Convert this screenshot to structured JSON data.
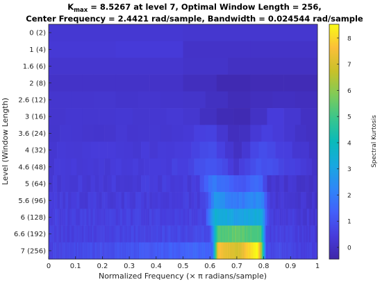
{
  "chart_data": {
    "type": "heatmap",
    "title": {
      "line1_pre": "K",
      "line1_sub": "max",
      "line1_post": " = 8.5267 at level 7, Optimal Window Length = 256,",
      "line2": "Center Frequency = 2.4421 rad/sample, Bandwidth = 0.024544 rad/sample"
    },
    "xlabel": "Normalized Frequency (× π radians/sample)",
    "ylabel": "Level (Window Length)",
    "colorbar_label": "Spectral Kurtosis",
    "xlim": [
      0,
      1
    ],
    "xticks": [
      "0",
      "0.1",
      "0.2",
      "0.3",
      "0.4",
      "0.5",
      "0.6",
      "0.7",
      "0.8",
      "0.9",
      "1"
    ],
    "levels": [
      "0  (2)",
      "1  (4)",
      "1.6  (6)",
      "2  (8)",
      "2.6 (12)",
      "3  (16)",
      "3.6 (24)",
      "4  (32)",
      "4.6 (48)",
      "5  (64)",
      "5.6 (96)",
      "6 (128)",
      "6.6 (192)",
      "7 (256)"
    ],
    "clim": [
      -0.45,
      8.5267
    ],
    "cticks": [
      "0",
      "1",
      "2",
      "3",
      "4",
      "5",
      "6",
      "7",
      "8"
    ],
    "kmax": 8.5267,
    "kmax_level": 7,
    "center_frequency_normalized": 0.7773,
    "bandwidth_normalized": 0.0078,
    "row_bands": [
      {
        "level": "0  (2)",
        "bands": 2,
        "profile": [
          {
            "x": 0,
            "v": 0.3
          },
          {
            "x": 1,
            "v": 0.2
          }
        ]
      },
      {
        "level": "1  (4)",
        "bands": 4,
        "profile": [
          {
            "x": 0,
            "v": 0.3
          },
          {
            "x": 0.5,
            "v": 0.4
          },
          {
            "x": 0.6,
            "v": 0.1
          },
          {
            "x": 1,
            "v": 0.1
          }
        ]
      },
      {
        "level": "1.6  (6)",
        "bands": 6,
        "profile": [
          {
            "x": 0,
            "v": 0.2
          },
          {
            "x": 0.5,
            "v": 0.2
          },
          {
            "x": 0.7,
            "v": 0.0
          },
          {
            "x": 1,
            "v": 0.0
          }
        ]
      },
      {
        "level": "2  (8)",
        "bands": 8,
        "profile": [
          {
            "x": 0,
            "v": 0.1
          },
          {
            "x": 0.5,
            "v": 0.1
          },
          {
            "x": 0.65,
            "v": -0.3
          },
          {
            "x": 0.8,
            "v": -0.2
          },
          {
            "x": 1,
            "v": -0.2
          }
        ]
      },
      {
        "level": "2.6 (12)",
        "bands": 12,
        "profile": [
          {
            "x": 0,
            "v": 0.2
          },
          {
            "x": 0.5,
            "v": 0.2
          },
          {
            "x": 0.7,
            "v": -0.2
          },
          {
            "x": 0.85,
            "v": 0.0
          },
          {
            "x": 1,
            "v": -0.1
          }
        ]
      },
      {
        "level": "3  (16)",
        "bands": 16,
        "profile": [
          {
            "x": 0,
            "v": 0.2
          },
          {
            "x": 0.5,
            "v": 0.3
          },
          {
            "x": 0.7,
            "v": -0.3
          },
          {
            "x": 0.85,
            "v": 0.4
          },
          {
            "x": 1,
            "v": -0.1
          }
        ]
      },
      {
        "level": "3.6 (24)",
        "bands": 24,
        "profile": [
          {
            "x": 0,
            "v": 0.2
          },
          {
            "x": 0.5,
            "v": 0.3
          },
          {
            "x": 0.6,
            "v": 0.6
          },
          {
            "x": 0.7,
            "v": -0.2
          },
          {
            "x": 0.8,
            "v": 0.6
          },
          {
            "x": 1,
            "v": -0.1
          }
        ]
      },
      {
        "level": "4  (32)",
        "bands": 32,
        "profile": [
          {
            "x": 0,
            "v": 0.3
          },
          {
            "x": 0.5,
            "v": 0.4
          },
          {
            "x": 0.6,
            "v": 0.9
          },
          {
            "x": 0.7,
            "v": -0.1
          },
          {
            "x": 0.78,
            "v": 0.9
          },
          {
            "x": 1,
            "v": 0.0
          }
        ]
      },
      {
        "level": "4.6 (48)",
        "bands": 48,
        "profile": [
          {
            "x": 0,
            "v": 0.3
          },
          {
            "x": 0.5,
            "v": 0.5
          },
          {
            "x": 0.61,
            "v": 1.2
          },
          {
            "x": 0.7,
            "v": 0.3
          },
          {
            "x": 0.78,
            "v": 1.1
          },
          {
            "x": 1,
            "v": 0.1
          }
        ]
      },
      {
        "level": "5  (64)",
        "bands": 64,
        "profile": [
          {
            "x": 0,
            "v": 0.4
          },
          {
            "x": 0.55,
            "v": 0.4
          },
          {
            "x": 0.62,
            "v": 2.0
          },
          {
            "x": 0.7,
            "v": 1.0
          },
          {
            "x": 0.78,
            "v": 1.8
          },
          {
            "x": 0.82,
            "v": 0.3
          },
          {
            "x": 1,
            "v": 0.2
          }
        ]
      },
      {
        "level": "5.6 (96)",
        "bands": 96,
        "profile": [
          {
            "x": 0,
            "v": 0.4
          },
          {
            "x": 0.58,
            "v": 0.5
          },
          {
            "x": 0.62,
            "v": 2.6
          },
          {
            "x": 0.7,
            "v": 1.9
          },
          {
            "x": 0.79,
            "v": 2.4
          },
          {
            "x": 0.82,
            "v": 0.4
          },
          {
            "x": 1,
            "v": 0.2
          }
        ]
      },
      {
        "level": "6 (128)",
        "bands": 128,
        "profile": [
          {
            "x": 0,
            "v": 0.5
          },
          {
            "x": 0.58,
            "v": 0.6
          },
          {
            "x": 0.62,
            "v": 3.6
          },
          {
            "x": 0.7,
            "v": 2.9
          },
          {
            "x": 0.79,
            "v": 3.4
          },
          {
            "x": 0.82,
            "v": 0.5
          },
          {
            "x": 1,
            "v": 0.3
          }
        ]
      },
      {
        "level": "6.6 (192)",
        "bands": 192,
        "profile": [
          {
            "x": 0,
            "v": 0.5
          },
          {
            "x": 0.6,
            "v": 0.8
          },
          {
            "x": 0.63,
            "v": 5.2
          },
          {
            "x": 0.7,
            "v": 5.5
          },
          {
            "x": 0.79,
            "v": 5.0
          },
          {
            "x": 0.81,
            "v": 0.6
          },
          {
            "x": 1,
            "v": 0.4
          }
        ]
      },
      {
        "level": "7 (256)",
        "bands": 256,
        "profile": [
          {
            "x": 0,
            "v": 0.6
          },
          {
            "x": 0.61,
            "v": 1.5
          },
          {
            "x": 0.63,
            "v": 7.6
          },
          {
            "x": 0.7,
            "v": 6.9
          },
          {
            "x": 0.777,
            "v": 8.5267
          },
          {
            "x": 0.79,
            "v": 6.5
          },
          {
            "x": 0.81,
            "v": 0.8
          },
          {
            "x": 1,
            "v": 0.5
          }
        ]
      }
    ]
  }
}
